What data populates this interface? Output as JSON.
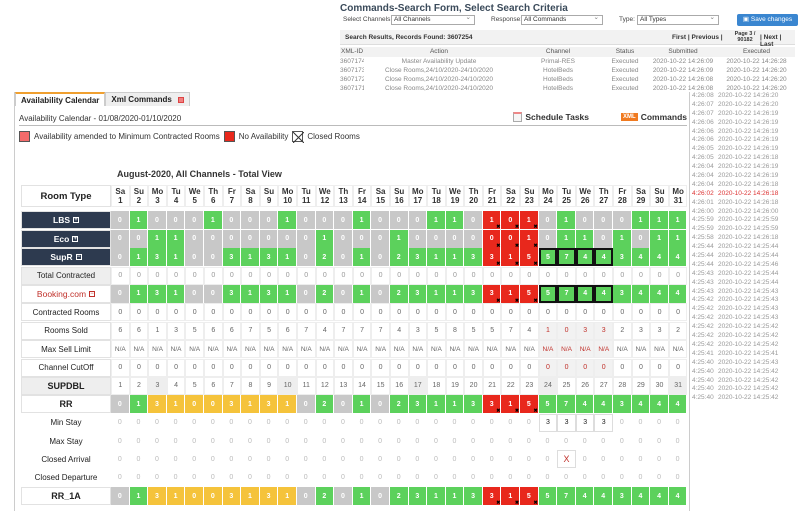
{
  "search_form": {
    "title": "Commands-Search Form, Select Search Criteria",
    "channels_label": "Select Channels:",
    "channels_value": "All Channels",
    "response_label": "Response:",
    "response_value": "All Commands",
    "type_label": "Type:",
    "type_value": "All Types",
    "save_label": "Save changes",
    "results_label": "Search Results,  Records Found: 3607254",
    "pager_first_prev": "First | Previous |",
    "pager_page": "Page 3 / 90182",
    "pager_next_last": "| Next | Last",
    "columns": [
      "XML-ID",
      "Action",
      "Channel",
      "Status",
      "Submitted",
      "Executed"
    ],
    "rows": [
      [
        "3607174",
        "Master Availability Update",
        "Primal-RES",
        "Executed",
        "2020-10-22 14:26:09",
        "2020-10-22 14:26:28"
      ],
      [
        "3607173",
        "Close Rooms,24/10/2020-24/10/2020",
        "HotelBeds",
        "Executed",
        "2020-10-22 14:26:09",
        "2020-10-22 14:26:20"
      ],
      [
        "3607172",
        "Close Rooms,24/10/2020-24/10/2020",
        "HotelBeds",
        "Executed",
        "2020-10-22 14:26:08",
        "2020-10-22 14:26:20"
      ],
      [
        "3607171",
        "Close Rooms,24/10/2020-24/10/2020",
        "HotelBeds",
        "Executed",
        "2020-10-22 14:26:08",
        "2020-10-22 14:26:20"
      ]
    ],
    "right_rows": [
      [
        "4:26:08",
        "2020-10-22 14:26:20"
      ],
      [
        "4:26:07",
        "2020-10-22 14:26:20"
      ],
      [
        "4:26:07",
        "2020-10-22 14:26:19"
      ],
      [
        "4:26:06",
        "2020-10-22 14:26:19"
      ],
      [
        "4:26:06",
        "2020-10-22 14:26:19"
      ],
      [
        "4:26:06",
        "2020-10-22 14:26:19"
      ],
      [
        "4:26:05",
        "2020-10-22 14:26:19"
      ],
      [
        "4:26:05",
        "2020-10-22 14:26:18"
      ],
      [
        "4:26:04",
        "2020-10-22 14:26:19"
      ],
      [
        "4:26:04",
        "2020-10-22 14:26:19"
      ],
      [
        "4:26:04",
        "2020-10-22 14:26:18"
      ],
      [
        "4:26:02",
        "2020-10-22 14:26:18"
      ],
      [
        "4:26:01",
        "2020-10-22 14:26:18"
      ],
      [
        "4:26:00",
        "2020-10-22 14:26:00"
      ],
      [
        "4:25:59",
        "2020-10-22 14:25:59"
      ],
      [
        "4:25:59",
        "2020-10-22 14:25:59"
      ],
      [
        "4:25:58",
        "2020-10-22 14:26:18"
      ],
      [
        "4:25:44",
        "2020-10-22 14:25:44"
      ],
      [
        "4:25:44",
        "2020-10-22 14:25:44"
      ],
      [
        "4:25:44",
        "2020-10-22 14:25:46"
      ],
      [
        "4:25:43",
        "2020-10-22 14:25:44"
      ],
      [
        "4:25:43",
        "2020-10-22 14:25:44"
      ],
      [
        "4:25:43",
        "2020-10-22 14:25:43"
      ],
      [
        "4:25:42",
        "2020-10-22 14:25:43"
      ],
      [
        "4:25:42",
        "2020-10-22 14:25:43"
      ],
      [
        "4:25:42",
        "2020-10-22 14:25:43"
      ],
      [
        "4:25:42",
        "2020-10-22 14:25:42"
      ],
      [
        "4:25:42",
        "2020-10-22 14:25:42"
      ],
      [
        "4:25:42",
        "2020-10-22 14:25:42"
      ],
      [
        "4:25:41",
        "2020-10-22 14:25:41"
      ],
      [
        "4:25:40",
        "2020-10-22 14:25:43"
      ],
      [
        "4:25:40",
        "2020-10-22 14:25:42"
      ],
      [
        "4:25:40",
        "2020-10-22 14:25:42"
      ],
      [
        "4:25:40",
        "2020-10-22 14:25:42"
      ],
      [
        "4:25:40",
        "2020-10-22 14:25:42"
      ]
    ],
    "right_highlight_row": 11
  },
  "tabs": [
    {
      "label": "Availability Calendar",
      "active": true
    },
    {
      "label": "Xml Commands",
      "active": false
    }
  ],
  "calendar": {
    "header": "Availability Calendar - 01/08/2020-01/10/2020",
    "schedule_tasks": "Schedule Tasks",
    "xml_badge": "XML",
    "commands": "Commands",
    "legend": [
      {
        "label": "Availability amended to Minimum Contracted Rooms",
        "color": "#f36b6b",
        "icon": "swatch"
      },
      {
        "label": "No Availability",
        "color": "#e8281c",
        "icon": "swatch"
      },
      {
        "label": "Closed Rooms",
        "color": "#ffffff",
        "icon": "crossed-box-icon"
      }
    ],
    "title": "August-2020,  All Channels - Total View",
    "room_type_header": "Room Type",
    "weekdays": [
      "Sa",
      "Su",
      "Mo",
      "Tu",
      "We",
      "Th",
      "Fr",
      "Sa",
      "Su",
      "Mo",
      "Tu",
      "We",
      "Th",
      "Fr",
      "Sa",
      "Su",
      "Mo",
      "Tu",
      "We",
      "Th",
      "Fr",
      "Sa",
      "Su",
      "Mo",
      "Tu",
      "We",
      "Th",
      "Fr",
      "Sa",
      "Su",
      "Mo"
    ],
    "days": [
      1,
      2,
      3,
      4,
      5,
      6,
      7,
      8,
      9,
      10,
      11,
      12,
      13,
      14,
      15,
      16,
      17,
      18,
      19,
      20,
      21,
      22,
      23,
      24,
      25,
      26,
      27,
      28,
      29,
      30,
      31
    ],
    "state_legend": {
      "g": "zero availability (grey)",
      "G": "available (green)",
      "Y": "amended (yellow)",
      "R": "no availability, closed",
      "B": "selected (bordered)",
      "w": "plain",
      "r": "highlighted (red text)",
      "m": "Monday shaded",
      "b": "boxed value",
      "x": "closed flag"
    },
    "colors": {
      "green": "#5cd15c",
      "grey": "#c8c8c8",
      "yellow": "#f5c33b",
      "red": "#e8281c",
      "room_label": "#2d3a4f",
      "link": "#c0302a"
    },
    "rows": [
      {
        "label": "LBS",
        "style": "dark",
        "toggle": "+",
        "values": [
          0,
          1,
          0,
          0,
          0,
          1,
          0,
          0,
          0,
          1,
          0,
          0,
          0,
          1,
          0,
          0,
          0,
          1,
          1,
          0,
          1,
          0,
          1,
          0,
          1,
          0,
          0,
          0,
          1,
          1,
          1
        ],
        "states": "gGgggGgggGgggGgggGGgRRRgGgggGGG"
      },
      {
        "label": "Eco",
        "style": "dark",
        "toggle": "+",
        "values": [
          0,
          0,
          1,
          1,
          0,
          0,
          0,
          0,
          0,
          0,
          0,
          1,
          0,
          0,
          0,
          1,
          0,
          0,
          0,
          0,
          0,
          0,
          1,
          0,
          1,
          1,
          0,
          1,
          0,
          1,
          1
        ],
        "states": "ggGGgggggggGgggGggggRRRgGGgGgGG"
      },
      {
        "label": "SupR",
        "style": "dark",
        "toggle": "−",
        "values": [
          0,
          1,
          3,
          1,
          0,
          0,
          3,
          1,
          3,
          1,
          0,
          2,
          0,
          1,
          0,
          2,
          3,
          1,
          1,
          3,
          3,
          1,
          5,
          5,
          7,
          4,
          4,
          3,
          4,
          4,
          4
        ],
        "states": "gGGGggGGGGgGgGgGGGGGRRRBBBBGGGG"
      },
      {
        "label": "Total Contracted",
        "style": "grey",
        "tone": "light",
        "values": [
          0,
          0,
          0,
          0,
          0,
          0,
          0,
          0,
          0,
          0,
          0,
          0,
          0,
          0,
          0,
          0,
          0,
          0,
          0,
          0,
          0,
          0,
          0,
          0,
          0,
          0,
          0,
          0,
          0,
          0,
          0
        ],
        "states": "wwwwwwwwwwwwwwwwwwwwwwwwwwwwwww"
      },
      {
        "label": "Booking.com",
        "style": "link",
        "toggle": "−",
        "values": [
          0,
          1,
          3,
          1,
          0,
          0,
          3,
          1,
          3,
          1,
          0,
          2,
          0,
          1,
          0,
          2,
          3,
          1,
          1,
          3,
          3,
          1,
          5,
          5,
          7,
          4,
          4,
          3,
          4,
          4,
          4
        ],
        "states": "gGGGggGGGGgGgGgGGGGGRRRBBBBGGGG"
      },
      {
        "label": "Contracted Rooms",
        "style": "normal",
        "tone": "dark",
        "values": [
          0,
          0,
          0,
          0,
          0,
          0,
          0,
          0,
          0,
          0,
          0,
          0,
          0,
          0,
          0,
          0,
          0,
          0,
          0,
          0,
          0,
          0,
          0,
          0,
          0,
          0,
          0,
          0,
          0,
          0,
          0
        ],
        "states": "wwwwwwwwwwwwwwwwwwwwwwwwwwwwwww"
      },
      {
        "label": "Rooms Sold",
        "style": "normal",
        "tone": "dark",
        "values": [
          6,
          6,
          1,
          3,
          5,
          6,
          6,
          7,
          5,
          6,
          7,
          4,
          7,
          7,
          7,
          4,
          3,
          5,
          8,
          5,
          5,
          7,
          4,
          1,
          0,
          3,
          3,
          2,
          3,
          3,
          2
        ],
        "states": "wwwwwwwwwwwwwwwwwwwwwwwrrrrwwww"
      },
      {
        "label": "Max Sell Limit",
        "style": "normal",
        "tone": "dark",
        "values": [
          "N/A",
          "N/A",
          "N/A",
          "N/A",
          "N/A",
          "N/A",
          "N/A",
          "N/A",
          "N/A",
          "N/A",
          "N/A",
          "N/A",
          "N/A",
          "N/A",
          "N/A",
          "N/A",
          "N/A",
          "N/A",
          "N/A",
          "N/A",
          "N/A",
          "N/A",
          "N/A",
          "N/A",
          "N/A",
          "N/A",
          "N/A",
          "N/A",
          "N/A",
          "N/A",
          "N/A"
        ],
        "states": "wwwwwwwwwwwwwwwwwwwwwwwrrrrwwww"
      },
      {
        "label": "Channel CutOff",
        "style": "normal",
        "tone": "dark",
        "values": [
          0,
          0,
          0,
          0,
          0,
          0,
          0,
          0,
          0,
          0,
          0,
          0,
          0,
          0,
          0,
          0,
          0,
          0,
          0,
          0,
          0,
          0,
          0,
          0,
          0,
          0,
          0,
          0,
          0,
          0,
          0
        ],
        "states": "wwwwwwwwwwwwwwwwwwwwwwwrrrrwwww"
      },
      {
        "label": "SUPDBL",
        "style": "grey-bold",
        "tone": "dark",
        "values": [
          1,
          2,
          3,
          4,
          5,
          6,
          7,
          8,
          9,
          10,
          11,
          12,
          13,
          14,
          15,
          16,
          17,
          18,
          19,
          20,
          21,
          22,
          23,
          24,
          25,
          26,
          27,
          28,
          29,
          30,
          31
        ],
        "states": "wwmwwwwwwmwwwwwwmwwwwwwmwwwwwwm"
      },
      {
        "label": "RR",
        "style": "bold",
        "values": [
          0,
          1,
          3,
          1,
          0,
          0,
          3,
          1,
          3,
          1,
          0,
          2,
          0,
          1,
          0,
          2,
          3,
          1,
          1,
          3,
          3,
          1,
          5,
          5,
          7,
          4,
          4,
          3,
          4,
          4,
          4
        ],
        "states": "gGYYYYYYYYgGgGgGGGGGRRRGGGGGGGG"
      },
      {
        "label": "Min Stay",
        "style": "plain",
        "tone": "light",
        "values": [
          0,
          0,
          0,
          0,
          0,
          0,
          0,
          0,
          0,
          0,
          0,
          0,
          0,
          0,
          0,
          0,
          0,
          0,
          0,
          0,
          0,
          0,
          0,
          3,
          3,
          3,
          3,
          0,
          0,
          0,
          0
        ],
        "states": "lllllllllllllllllllllllbbbbllll"
      },
      {
        "label": "Max Stay",
        "style": "plain",
        "tone": "light",
        "values": [
          0,
          0,
          0,
          0,
          0,
          0,
          0,
          0,
          0,
          0,
          0,
          0,
          0,
          0,
          0,
          0,
          0,
          0,
          0,
          0,
          0,
          0,
          0,
          0,
          0,
          0,
          0,
          0,
          0,
          0,
          0
        ],
        "states": "lllllllllllllllllllllllllllllll"
      },
      {
        "label": "Closed Arrival",
        "style": "plain",
        "tone": "light",
        "values": [
          0,
          0,
          0,
          0,
          0,
          0,
          0,
          0,
          0,
          0,
          0,
          0,
          0,
          0,
          0,
          0,
          0,
          0,
          0,
          0,
          0,
          0,
          0,
          0,
          "X",
          0,
          0,
          0,
          0,
          0,
          0
        ],
        "states": "llllllllllllllllllllllllxllllll"
      },
      {
        "label": "Closed Departure",
        "style": "plain",
        "tone": "light",
        "values": [
          0,
          0,
          0,
          0,
          0,
          0,
          0,
          0,
          0,
          0,
          0,
          0,
          0,
          0,
          0,
          0,
          0,
          0,
          0,
          0,
          0,
          0,
          0,
          0,
          0,
          0,
          0,
          0,
          0,
          0,
          0
        ],
        "states": "lllllllllllllllllllllllllllllll"
      },
      {
        "label": "RR_1A",
        "style": "bold",
        "values": [
          0,
          1,
          3,
          1,
          0,
          0,
          3,
          1,
          3,
          1,
          0,
          2,
          0,
          1,
          0,
          2,
          3,
          1,
          1,
          3,
          3,
          1,
          5,
          5,
          7,
          4,
          4,
          3,
          4,
          4,
          4
        ],
        "states": "gGYYYYYYYYgGgGgGGGGGRRRGGGGGGGG"
      }
    ]
  }
}
